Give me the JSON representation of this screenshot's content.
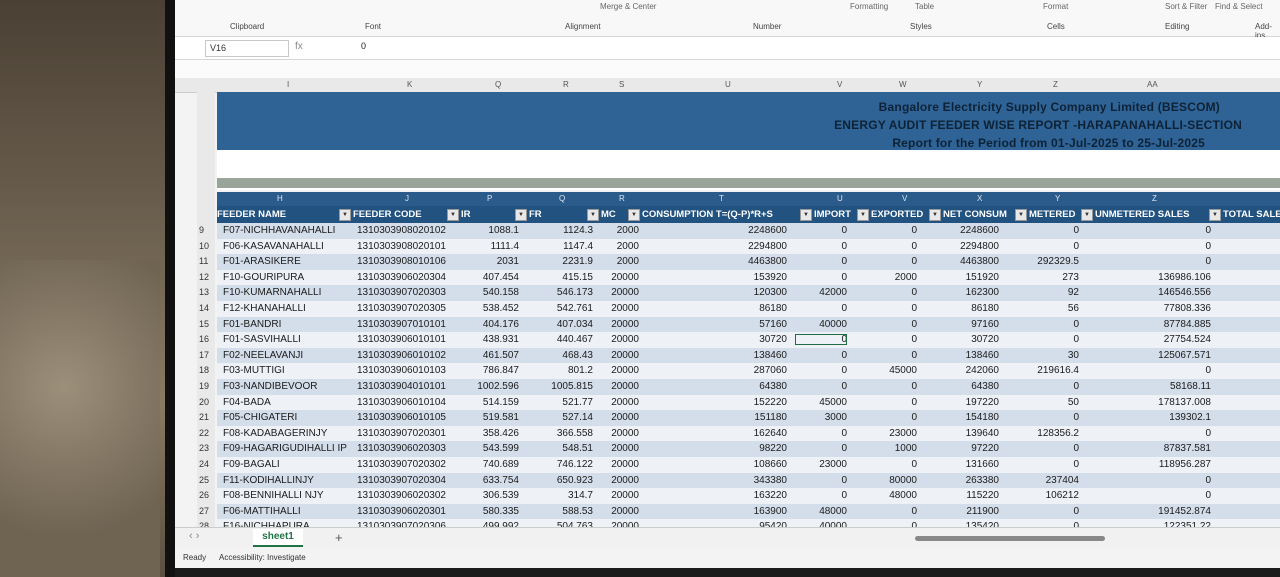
{
  "ribbon": {
    "groups": [
      "Clipboard",
      "Font",
      "Alignment",
      "Number",
      "Styles",
      "Cells",
      "Editing",
      "Add-ins"
    ],
    "buttons": [
      "Merge & Center",
      "Formatting",
      "Table",
      "Format",
      "Sort & Filter",
      "Find & Select"
    ]
  },
  "formula_bar": {
    "cell": "V16",
    "value": "0",
    "fx": "fx"
  },
  "column_letters": [
    "I",
    "K",
    "Q",
    "R",
    "S",
    "U",
    "V",
    "W",
    "Y",
    "Z",
    "AA"
  ],
  "banner": {
    "line1": "Bangalore Electricity Supply Company Limited (BESCOM)",
    "line2": "ENERGY AUDIT FEEDER WISE REPORT -HARAPANAHALLI-SECTION",
    "line3": "Report for the Period from 01-Jul-2025 to 25-Jul-2025"
  },
  "header_letters": [
    "H",
    "J",
    "P",
    "Q",
    "R",
    "T",
    "U",
    "V",
    "X",
    "Y",
    "Z"
  ],
  "headers": [
    "FEEDER NAME",
    "FEEDER CODE",
    "IR",
    "FR",
    "MC",
    "CONSUMPTION T=(Q-P)*R+S",
    "IMPORT",
    "EXPORTED",
    "NET CONSUM",
    "METERED",
    "UNMETERED SALES",
    "TOTAL SALE"
  ],
  "rows": [
    {
      "n": "9",
      "name": "F07-NICHHAVANAHALLI",
      "code": "1310303908020102",
      "ir": "1088.1",
      "fr": "1124.3",
      "mc": "2000",
      "cons": "2248600",
      "imp": "0",
      "exp": "0",
      "net": "2248600",
      "met": "0",
      "unmet": "0"
    },
    {
      "n": "10",
      "name": "F06-KASAVANAHALLI",
      "code": "1310303908020101",
      "ir": "1111.4",
      "fr": "1147.4",
      "mc": "2000",
      "cons": "2294800",
      "imp": "0",
      "exp": "0",
      "net": "2294800",
      "met": "0",
      "unmet": "0"
    },
    {
      "n": "11",
      "name": "F01-ARASIKERE",
      "code": "1310303908010106",
      "ir": "2031",
      "fr": "2231.9",
      "mc": "2000",
      "cons": "4463800",
      "imp": "0",
      "exp": "0",
      "net": "4463800",
      "met": "292329.5",
      "unmet": "0"
    },
    {
      "n": "12",
      "name": "F10-GOURIPURA",
      "code": "1310303906020304",
      "ir": "407.454",
      "fr": "415.15",
      "mc": "20000",
      "cons": "153920",
      "imp": "0",
      "exp": "2000",
      "net": "151920",
      "met": "273",
      "unmet": "136986.106"
    },
    {
      "n": "13",
      "name": "F10-KUMARNAHALLI",
      "code": "1310303907020303",
      "ir": "540.158",
      "fr": "546.173",
      "mc": "20000",
      "cons": "120300",
      "imp": "42000",
      "exp": "0",
      "net": "162300",
      "met": "92",
      "unmet": "146546.556"
    },
    {
      "n": "14",
      "name": "F12-KHANAHALLI",
      "code": "1310303907020305",
      "ir": "538.452",
      "fr": "542.761",
      "mc": "20000",
      "cons": "86180",
      "imp": "0",
      "exp": "0",
      "net": "86180",
      "met": "56",
      "unmet": "77808.336"
    },
    {
      "n": "15",
      "name": "F01-BANDRI",
      "code": "1310303907010101",
      "ir": "404.176",
      "fr": "407.034",
      "mc": "20000",
      "cons": "57160",
      "imp": "40000",
      "exp": "0",
      "net": "97160",
      "met": "0",
      "unmet": "87784.885"
    },
    {
      "n": "16",
      "name": "F01-SASVIHALLI",
      "code": "1310303906010101",
      "ir": "438.931",
      "fr": "440.467",
      "mc": "20000",
      "cons": "30720",
      "imp": "0",
      "exp": "0",
      "net": "30720",
      "met": "0",
      "unmet": "27754.524"
    },
    {
      "n": "17",
      "name": "F02-NEELAVANJI",
      "code": "1310303906010102",
      "ir": "461.507",
      "fr": "468.43",
      "mc": "20000",
      "cons": "138460",
      "imp": "0",
      "exp": "0",
      "net": "138460",
      "met": "30",
      "unmet": "125067.571"
    },
    {
      "n": "18",
      "name": "F03-MUTTIGI",
      "code": "1310303906010103",
      "ir": "786.847",
      "fr": "801.2",
      "mc": "20000",
      "cons": "287060",
      "imp": "0",
      "exp": "45000",
      "net": "242060",
      "met": "219616.4",
      "unmet": "0"
    },
    {
      "n": "19",
      "name": "F03-NANDIBEVOOR",
      "code": "1310303904010101",
      "ir": "1002.596",
      "fr": "1005.815",
      "mc": "20000",
      "cons": "64380",
      "imp": "0",
      "exp": "0",
      "net": "64380",
      "met": "0",
      "unmet": "58168.11"
    },
    {
      "n": "20",
      "name": "F04-BADA",
      "code": "1310303906010104",
      "ir": "514.159",
      "fr": "521.77",
      "mc": "20000",
      "cons": "152220",
      "imp": "45000",
      "exp": "0",
      "net": "197220",
      "met": "50",
      "unmet": "178137.008"
    },
    {
      "n": "21",
      "name": "F05-CHIGATERI",
      "code": "1310303906010105",
      "ir": "519.581",
      "fr": "527.14",
      "mc": "20000",
      "cons": "151180",
      "imp": "3000",
      "exp": "0",
      "net": "154180",
      "met": "0",
      "unmet": "139302.1"
    },
    {
      "n": "22",
      "name": "F08-KADABAGERINJY",
      "code": "1310303907020301",
      "ir": "358.426",
      "fr": "366.558",
      "mc": "20000",
      "cons": "162640",
      "imp": "0",
      "exp": "23000",
      "net": "139640",
      "met": "128356.2",
      "unmet": "0"
    },
    {
      "n": "23",
      "name": "F09-HAGARIGUDIHALLI IP",
      "code": "1310303906020303",
      "ir": "543.599",
      "fr": "548.51",
      "mc": "20000",
      "cons": "98220",
      "imp": "0",
      "exp": "1000",
      "net": "97220",
      "met": "0",
      "unmet": "87837.581"
    },
    {
      "n": "24",
      "name": "F09-BAGALI",
      "code": "1310303907020302",
      "ir": "740.689",
      "fr": "746.122",
      "mc": "20000",
      "cons": "108660",
      "imp": "23000",
      "exp": "0",
      "net": "131660",
      "met": "0",
      "unmet": "118956.287"
    },
    {
      "n": "25",
      "name": "F11-KODIHALLINJY",
      "code": "1310303907020304",
      "ir": "633.754",
      "fr": "650.923",
      "mc": "20000",
      "cons": "343380",
      "imp": "0",
      "exp": "80000",
      "net": "263380",
      "met": "237404",
      "unmet": "0"
    },
    {
      "n": "26",
      "name": "F08-BENNIHALLI NJY",
      "code": "1310303906020302",
      "ir": "306.539",
      "fr": "314.7",
      "mc": "20000",
      "cons": "163220",
      "imp": "0",
      "exp": "48000",
      "net": "115220",
      "met": "106212",
      "unmet": "0"
    },
    {
      "n": "27",
      "name": "F06-MATTIHALLI",
      "code": "1310303906020301",
      "ir": "580.335",
      "fr": "588.53",
      "mc": "20000",
      "cons": "163900",
      "imp": "48000",
      "exp": "0",
      "net": "211900",
      "met": "0",
      "unmet": "191452.874"
    },
    {
      "n": "28",
      "name": "F16-NICHHAPURA",
      "code": "1310303907020306",
      "ir": "499.992",
      "fr": "504.763",
      "mc": "20000",
      "cons": "95420",
      "imp": "40000",
      "exp": "0",
      "net": "135420",
      "met": "0",
      "unmet": "122351.22"
    }
  ],
  "sheet_tab": "sheet1",
  "status": {
    "ready": "Ready",
    "accessibility": "Accessibility: Investigate"
  }
}
